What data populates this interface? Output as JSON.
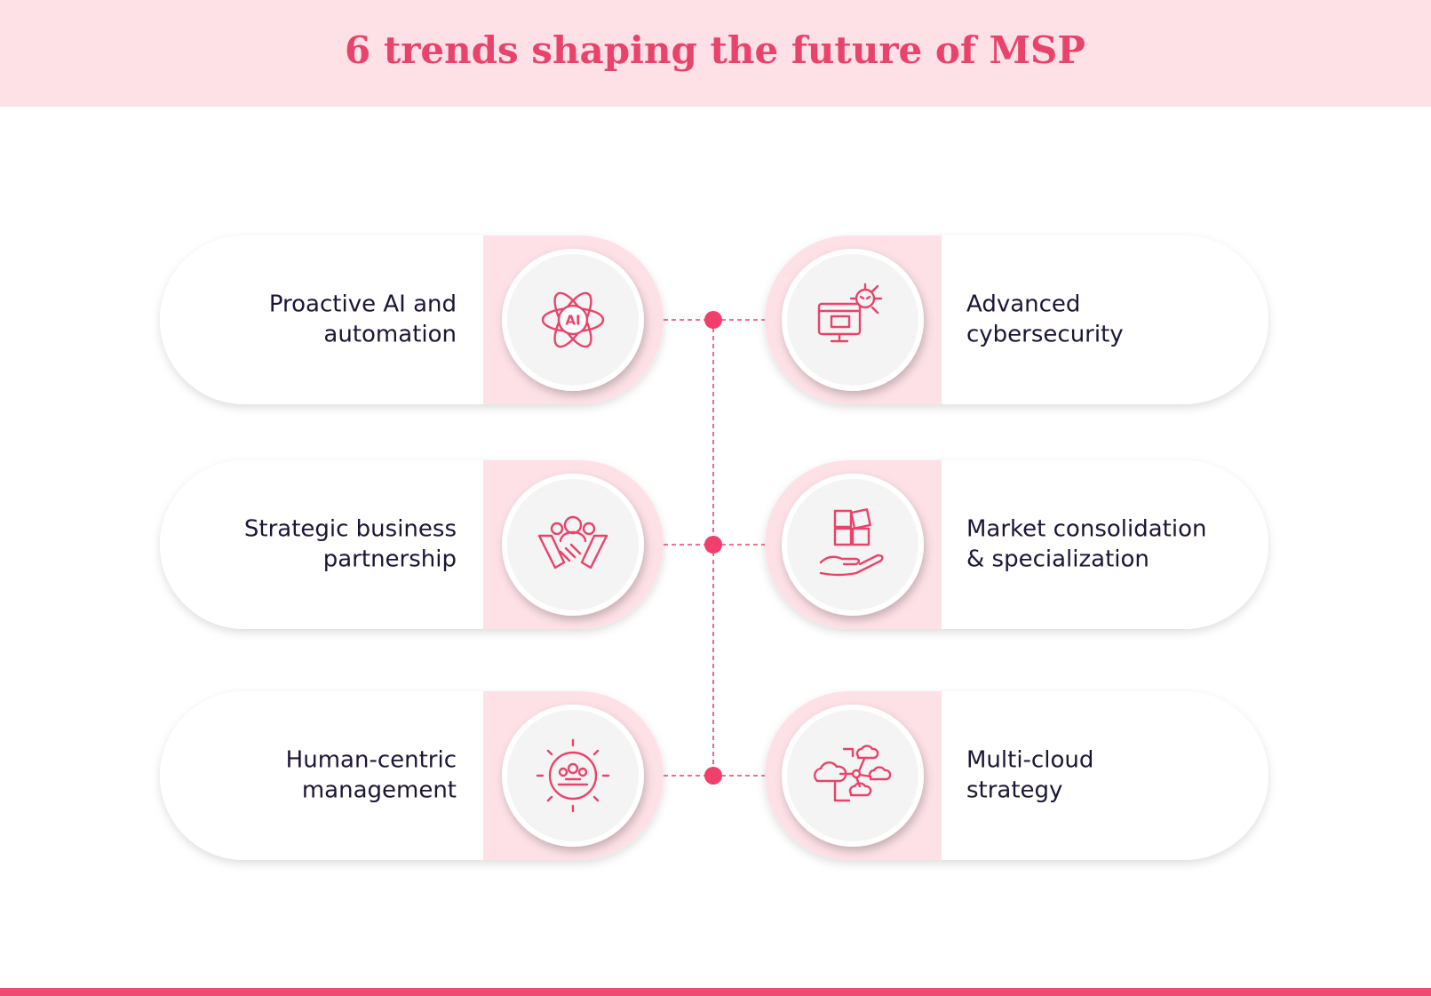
{
  "header": {
    "title": "6 trends shaping the future of MSP"
  },
  "left_column": [
    {
      "label_lines": [
        "Proactive AI and",
        "automation"
      ],
      "icon_text": "AI"
    },
    {
      "label_lines": [
        "Strategic business",
        "partnership"
      ]
    },
    {
      "label_lines": [
        "Human-centric",
        "management"
      ]
    }
  ],
  "right_column": [
    {
      "label_lines": [
        "Advanced",
        "cybersecurity"
      ]
    },
    {
      "label_lines": [
        "Market consolidation",
        "& specialization"
      ]
    },
    {
      "label_lines": [
        "Multi-cloud",
        "strategy"
      ]
    }
  ]
}
